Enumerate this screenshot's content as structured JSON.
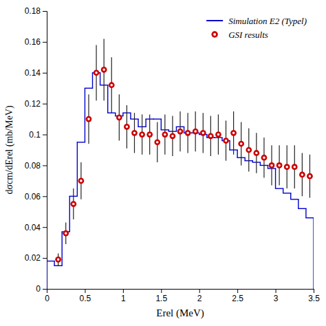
{
  "chart_data": {
    "type": "histogram",
    "xlabel": "Erel (MeV)",
    "ylabel": "dσcm/dErel (mb/MeV)",
    "xlim": [
      0,
      3.5
    ],
    "ylim": [
      0,
      0.18
    ],
    "xticks": [
      0,
      0.5,
      1,
      1.5,
      2,
      2.5,
      3,
      3.5
    ],
    "yticks": [
      0,
      0.02,
      0.04,
      0.06,
      0.08,
      0.1,
      0.12,
      0.14,
      0.16,
      0.18
    ],
    "grid": false,
    "legend": "upper right",
    "series": [
      {
        "name": "Simulation E2 (Typel)",
        "type": "step",
        "color": "#0000cc",
        "bins": [
          0.0,
          0.1,
          0.2,
          0.3,
          0.4,
          0.5,
          0.6,
          0.7,
          0.8,
          0.9,
          1.0,
          1.1,
          1.2,
          1.3,
          1.4,
          1.5,
          1.6,
          1.7,
          1.8,
          1.9,
          2.0,
          2.1,
          2.2,
          2.3,
          2.4,
          2.5,
          2.6,
          2.7,
          2.8,
          2.9,
          3.0,
          3.1,
          3.2,
          3.3,
          3.4,
          3.5
        ],
        "values": [
          0.018,
          0.015,
          0.037,
          0.06,
          0.095,
          0.13,
          0.14,
          0.132,
          0.114,
          0.112,
          0.114,
          0.11,
          0.105,
          0.11,
          0.11,
          0.103,
          0.102,
          0.105,
          0.101,
          0.101,
          0.1,
          0.098,
          0.098,
          0.096,
          0.09,
          0.085,
          0.083,
          0.082,
          0.08,
          0.078,
          0.065,
          0.062,
          0.058,
          0.052,
          0.046
        ]
      },
      {
        "name": "GSI results",
        "type": "scatter",
        "color": "#cc0000",
        "marker": "circle",
        "x": [
          0.15,
          0.25,
          0.35,
          0.45,
          0.55,
          0.65,
          0.75,
          0.85,
          0.95,
          1.05,
          1.15,
          1.25,
          1.35,
          1.45,
          1.55,
          1.65,
          1.75,
          1.85,
          1.95,
          2.05,
          2.15,
          2.25,
          2.35,
          2.45,
          2.55,
          2.65,
          2.75,
          2.85,
          2.95,
          3.05,
          3.15,
          3.25,
          3.35,
          3.45
        ],
        "values": [
          0.019,
          0.036,
          0.055,
          0.07,
          0.11,
          0.14,
          0.142,
          0.132,
          0.111,
          0.105,
          0.101,
          0.1,
          0.1,
          0.095,
          0.1,
          0.099,
          0.102,
          0.101,
          0.102,
          0.101,
          0.099,
          0.1,
          0.096,
          0.101,
          0.094,
          0.09,
          0.088,
          0.085,
          0.08,
          0.08,
          0.079,
          0.079,
          0.074,
          0.073
        ],
        "errors": [
          0.004,
          0.007,
          0.01,
          0.012,
          0.016,
          0.018,
          0.02,
          0.018,
          0.015,
          0.014,
          0.013,
          0.013,
          0.013,
          0.013,
          0.013,
          0.013,
          0.013,
          0.013,
          0.013,
          0.013,
          0.013,
          0.013,
          0.013,
          0.014,
          0.014,
          0.014,
          0.013,
          0.013,
          0.013,
          0.013,
          0.014,
          0.014,
          0.014,
          0.014
        ]
      }
    ]
  }
}
